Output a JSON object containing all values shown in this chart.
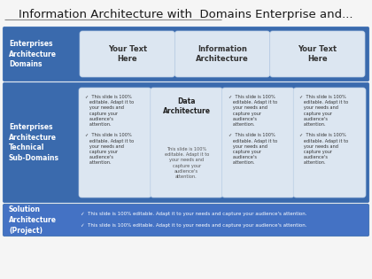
{
  "title": "Information Architecture with  Domains Enterprise and...",
  "title_fontsize": 9.5,
  "bg_color": "#f5f5f5",
  "header_line_color": "#888888",
  "row1_bg": "#3a6aad",
  "row2_bg": "#3a6aad",
  "row3_bg": "#4472c4",
  "card_bg": "#dce6f1",
  "row1_label": "Enterprises\nArchitecture\nDomains",
  "row2_label": "Enterprises\nArchitecture\nTechnical\nSub-Domains",
  "row3_label": "Solution\nArchitecture\n(Project)",
  "row1_cards": [
    "Your Text\nHere",
    "Information\nArchitecture",
    "Your Text\nHere"
  ],
  "bullet_text": "This slide is 100%\neditable. Adapt it to\nyour needs and\ncapture your\naudience's\nattention.",
  "data_arch_title": "Data\nArchitecture",
  "row3_bullet1": "✓  This slide is 100% editable. Adapt it to your needs and capture your audience's attention.",
  "row3_bullet2": "✓  This slide is 100% editable. Adapt it to your needs and capture your audience's attention."
}
